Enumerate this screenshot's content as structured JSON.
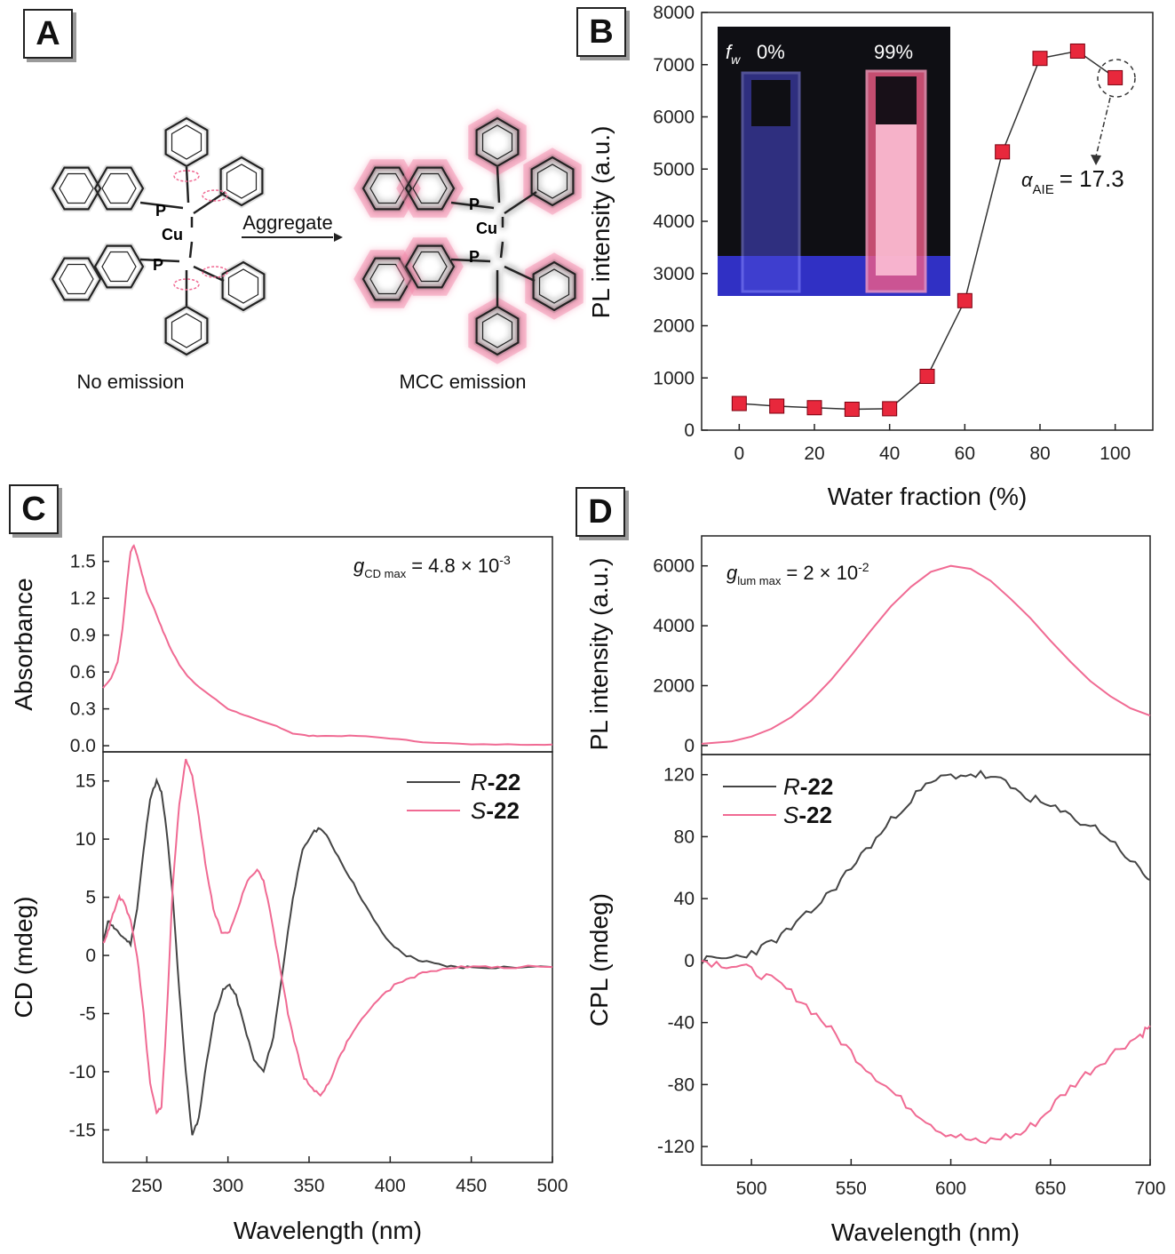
{
  "panels": {
    "A": {
      "label": "A",
      "arrow_label": "Aggregate",
      "left_caption": "No emission",
      "right_caption": "MCC emission",
      "atoms": {
        "p": "P",
        "cu": "Cu"
      }
    },
    "B": {
      "label": "B"
    },
    "C": {
      "label": "C"
    },
    "D": {
      "label": "D"
    }
  },
  "colors": {
    "pink": "#f06a93",
    "red_marker": "#e8283c",
    "black_line": "#444444",
    "aggregate_glow": "#f48aaa"
  },
  "inset": {
    "fw_label": "f",
    "fw_sub": "w",
    "left_pct": "0%",
    "right_pct": "99%"
  },
  "annotations": {
    "B": {
      "alpha": "α",
      "alpha_sub": "AIE",
      "alpha_value": "= 17.3"
    },
    "C": {
      "g": "g",
      "g_sub": "CD max",
      "g_value": "= 4.8 × 10",
      "g_exp": "-3"
    },
    "D": {
      "g": "g",
      "g_sub": "lum max",
      "g_value": "= 2 × 10",
      "g_exp": "-2"
    }
  },
  "legends": {
    "R": {
      "prefix": "R",
      "suffix": "-22"
    },
    "S": {
      "prefix": "S",
      "suffix": "-22"
    }
  },
  "chart_data": [
    {
      "id": "B",
      "type": "scatter",
      "xlabel": "Water fraction (%)",
      "ylabel": "PL intensity (a.u.)",
      "xlim": [
        -10,
        110
      ],
      "ylim": [
        0,
        8000
      ],
      "xticks": [
        0,
        20,
        40,
        60,
        80,
        100
      ],
      "yticks": [
        0,
        1000,
        2000,
        3000,
        4000,
        5000,
        6000,
        7000,
        8000
      ],
      "series": [
        {
          "x": [
            0,
            10,
            20,
            30,
            40,
            50,
            60,
            70,
            80,
            90,
            100
          ],
          "y": [
            510,
            460,
            430,
            400,
            410,
            1030,
            2480,
            5330,
            7120,
            7260,
            6750
          ]
        }
      ]
    },
    {
      "id": "C-top",
      "type": "line",
      "ylabel": "Absorbance",
      "xlim": [
        223,
        500
      ],
      "ylim": [
        -0.05,
        1.7
      ],
      "yticks": [
        0.0,
        0.3,
        0.6,
        0.9,
        1.2,
        1.5
      ],
      "ytick_labels": [
        "0.0",
        "0.3",
        "0.6",
        "0.9",
        "1.2",
        "1.5"
      ],
      "series": [
        {
          "x": [
            223,
            228,
            232,
            235,
            238,
            240,
            242,
            244,
            247,
            250,
            255,
            260,
            265,
            270,
            275,
            280,
            290,
            300,
            310,
            320,
            330,
            340,
            350,
            360,
            380,
            400,
            420,
            450,
            480,
            500
          ],
          "y": [
            0.47,
            0.55,
            0.68,
            0.95,
            1.35,
            1.58,
            1.63,
            1.55,
            1.4,
            1.25,
            1.1,
            0.93,
            0.78,
            0.66,
            0.57,
            0.5,
            0.4,
            0.3,
            0.25,
            0.2,
            0.16,
            0.1,
            0.08,
            0.08,
            0.08,
            0.06,
            0.03,
            0.01,
            0.01,
            0.01
          ]
        }
      ]
    },
    {
      "id": "C-bottom",
      "type": "line",
      "xlabel": "Wavelength (nm)",
      "ylabel": "CD (mdeg)",
      "xlim": [
        223,
        500
      ],
      "ylim": [
        -17.8,
        17.5
      ],
      "xticks": [
        250,
        300,
        350,
        400,
        450,
        500
      ],
      "yticks": [
        -15,
        -10,
        -5,
        0,
        5,
        10,
        15
      ],
      "series": [
        {
          "name": "R-22",
          "x": [
            223,
            226,
            229,
            232,
            236,
            240,
            244,
            248,
            252,
            256,
            259,
            262,
            266,
            270,
            274,
            278,
            282,
            287,
            292,
            297,
            301,
            305,
            310,
            316,
            322,
            328,
            334,
            340,
            346,
            352,
            357,
            362,
            370,
            380,
            390,
            400,
            410,
            420,
            430,
            440,
            450,
            470,
            500
          ],
          "y": [
            1,
            3,
            2.5,
            2,
            1.5,
            1,
            4,
            9,
            13.5,
            15,
            14,
            11,
            5,
            -3,
            -10,
            -15.5,
            -14,
            -9,
            -5,
            -3,
            -2.5,
            -3.5,
            -6,
            -9,
            -10,
            -7,
            -1,
            5,
            9,
            10.5,
            11,
            10,
            8,
            5.5,
            3,
            1,
            0,
            -0.5,
            -0.8,
            -1,
            -1,
            -1,
            -1
          ]
        },
        {
          "name": "S-22",
          "x": [
            223,
            226,
            229,
            233,
            236,
            240,
            244,
            248,
            252,
            256,
            259,
            262,
            266,
            270,
            274,
            278,
            282,
            286,
            291,
            296,
            301,
            306,
            312,
            318,
            322,
            327,
            332,
            337,
            342,
            347,
            352,
            357,
            362,
            368,
            375,
            385,
            395,
            405,
            415,
            425,
            440,
            455,
            470,
            500
          ],
          "y": [
            1,
            2,
            3.5,
            5,
            4.5,
            3,
            0,
            -5,
            -11,
            -13.5,
            -13,
            -6,
            6,
            13,
            16.8,
            15.5,
            12,
            8,
            4,
            2,
            2,
            4,
            6.5,
            7.3,
            6.5,
            3,
            -1,
            -5,
            -8,
            -10.5,
            -11.5,
            -12,
            -11,
            -9,
            -7,
            -5,
            -3.5,
            -2.3,
            -1.8,
            -1.3,
            -1,
            -1,
            -1,
            -1
          ]
        }
      ]
    },
    {
      "id": "D-top",
      "type": "line",
      "ylabel": "PL intensity (a.u.)",
      "xlim": [
        475,
        700
      ],
      "ylim": [
        -300,
        7000
      ],
      "yticks": [
        0,
        2000,
        4000,
        6000
      ],
      "series": [
        {
          "x": [
            475,
            490,
            500,
            510,
            520,
            530,
            540,
            550,
            560,
            570,
            580,
            590,
            600,
            610,
            620,
            630,
            640,
            650,
            660,
            670,
            680,
            690,
            700
          ],
          "y": [
            60,
            140,
            300,
            560,
            950,
            1500,
            2200,
            3000,
            3850,
            4650,
            5300,
            5800,
            6000,
            5900,
            5500,
            4900,
            4250,
            3500,
            2800,
            2150,
            1650,
            1250,
            1000
          ]
        }
      ]
    },
    {
      "id": "D-bottom",
      "type": "line",
      "xlabel": "Wavelength (nm)",
      "ylabel": "CPL (mdeg)",
      "xlim": [
        475,
        700
      ],
      "ylim": [
        -132,
        133
      ],
      "xticks": [
        500,
        550,
        600,
        650,
        700
      ],
      "yticks": [
        -120,
        -80,
        -40,
        0,
        40,
        80,
        120
      ],
      "series": [
        {
          "name": "R-22",
          "x": [
            475,
            485,
            495,
            505,
            515,
            525,
            535,
            545,
            555,
            565,
            575,
            585,
            595,
            605,
            615,
            625,
            635,
            645,
            655,
            665,
            675,
            685,
            695,
            700
          ],
          "y": [
            0,
            1,
            3,
            8,
            16,
            26,
            38,
            52,
            68,
            82,
            98,
            110,
            118,
            120,
            120,
            116,
            108,
            102,
            96,
            90,
            84,
            72,
            58,
            52
          ]
        },
        {
          "name": "S-22",
          "x": [
            475,
            485,
            495,
            505,
            515,
            525,
            535,
            545,
            555,
            565,
            575,
            585,
            595,
            605,
            615,
            625,
            635,
            645,
            655,
            665,
            675,
            685,
            695,
            700
          ],
          "y": [
            0,
            -2,
            -4,
            -9,
            -16,
            -26,
            -38,
            -52,
            -66,
            -78,
            -90,
            -100,
            -110,
            -114,
            -118,
            -114,
            -112,
            -102,
            -88,
            -76,
            -66,
            -56,
            -48,
            -42
          ]
        }
      ]
    }
  ]
}
